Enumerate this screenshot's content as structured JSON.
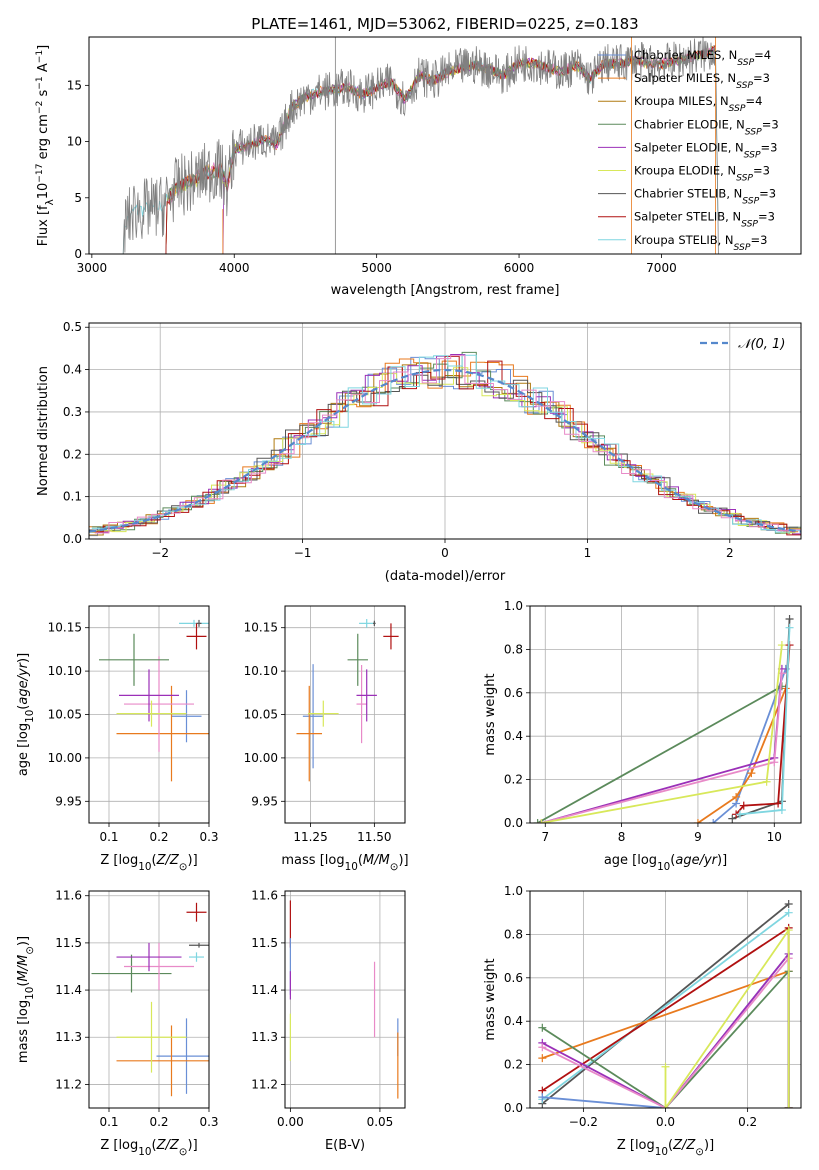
{
  "title": "PLATE=1461, MJD=53062, FIBERID=0225, z=0.183",
  "colors": [
    "#6a8fd6",
    "#e87a1e",
    "#b07a10",
    "#5b8a5b",
    "#9b30b8",
    "#d8e85a",
    "#555555",
    "#b01010",
    "#7fd6e0",
    "#e88ac8"
  ],
  "chart_data": [
    {
      "id": "spectrum",
      "type": "line",
      "xlabel": "wavelength [Angstrom, rest frame]",
      "ylabel": "Flux [f_λ 10^-17 erg cm^-2 s^-1 A^-1]",
      "xlim": [
        2980,
        7980
      ],
      "ylim": [
        0,
        19.3
      ],
      "xticks": [
        3000,
        4000,
        5000,
        6000,
        7000
      ],
      "yticks": [
        0,
        5,
        10,
        15
      ],
      "legend_position": "right",
      "legend": [
        {
          "label": "Chabrier MILES, N_SSP=4",
          "color": "#6a8fd6"
        },
        {
          "label": "Salpeter MILES, N_SSP=3",
          "color": "#e87a1e"
        },
        {
          "label": "Kroupa MILES, N_SSP=4",
          "color": "#b07a10"
        },
        {
          "label": "Chabrier ELODIE, N_SSP=3",
          "color": "#5b8a5b"
        },
        {
          "label": "Salpeter ELODIE, N_SSP=3",
          "color": "#9b30b8"
        },
        {
          "label": "Kroupa ELODIE, N_SSP=3",
          "color": "#d8e85a"
        },
        {
          "label": "Chabrier STELIB, N_SSP=3",
          "color": "#555555"
        },
        {
          "label": "Salpeter STELIB, N_SSP=3",
          "color": "#b01010"
        },
        {
          "label": "Kroupa STELIB, N_SSP=3",
          "color": "#7fd6e0"
        }
      ],
      "envelope": [
        [
          3220,
          0
        ],
        [
          3230,
          2.6
        ],
        [
          3300,
          3.9
        ],
        [
          3400,
          4.0
        ],
        [
          3500,
          4.3
        ],
        [
          3600,
          6.0
        ],
        [
          3700,
          6.4
        ],
        [
          3800,
          7.2
        ],
        [
          3900,
          7.5
        ],
        [
          3950,
          6.0
        ],
        [
          4000,
          9.3
        ],
        [
          4100,
          9.7
        ],
        [
          4200,
          10.2
        ],
        [
          4300,
          9.7
        ],
        [
          4400,
          13.0
        ],
        [
          4500,
          14.0
        ],
        [
          4600,
          14.4
        ],
        [
          4700,
          14.6
        ],
        [
          4800,
          14.8
        ],
        [
          4900,
          14.2
        ],
        [
          5000,
          14.8
        ],
        [
          5100,
          15.3
        ],
        [
          5200,
          13.7
        ],
        [
          5300,
          15.9
        ],
        [
          5400,
          15.4
        ],
        [
          5500,
          16.2
        ],
        [
          5600,
          16.6
        ],
        [
          5700,
          16.8
        ],
        [
          5800,
          16.4
        ],
        [
          5900,
          15.9
        ],
        [
          6000,
          17.0
        ],
        [
          6100,
          17.0
        ],
        [
          6200,
          16.6
        ],
        [
          6300,
          16.2
        ],
        [
          6400,
          16.8
        ],
        [
          6500,
          15.6
        ],
        [
          6600,
          17.0
        ],
        [
          6700,
          16.9
        ],
        [
          6800,
          17.2
        ],
        [
          6900,
          17.0
        ],
        [
          7000,
          16.9
        ],
        [
          7100,
          17.2
        ],
        [
          7200,
          17.5
        ],
        [
          7300,
          17.8
        ],
        [
          7380,
          18.2
        ],
        [
          7400,
          0
        ]
      ]
    },
    {
      "id": "residuals",
      "type": "area",
      "xlabel": "(data-model)/error",
      "ylabel": "Normed distribution",
      "xlim": [
        -2.5,
        2.5
      ],
      "ylim": [
        0,
        0.51
      ],
      "xticks": [
        -2,
        -1,
        0,
        1,
        2
      ],
      "yticks": [
        0.0,
        0.1,
        0.2,
        0.3,
        0.4,
        0.5
      ],
      "grid": true,
      "legend_position": "top-right",
      "reference_label": "𝒩(0, 1)",
      "reference_color": "#5588cc",
      "bin_width": 0.1
    },
    {
      "id": "age_vs_Z",
      "type": "scatter",
      "xlabel": "Z [log10(Z/Z⊙)]",
      "ylabel": "age [log10(age/yr)]",
      "xlim": [
        0.06,
        0.3
      ],
      "ylim": [
        9.925,
        10.175
      ],
      "xticks": [
        0.1,
        0.2,
        0.3
      ],
      "yticks": [
        9.95,
        10.0,
        10.05,
        10.1,
        10.15
      ],
      "grid": true,
      "series": [
        {
          "color": "#6a8fd6",
          "x": 0.255,
          "xerr": 0.03,
          "y": 10.048,
          "yerr": 0.03
        },
        {
          "color": "#e87a1e",
          "x": 0.225,
          "xerr": 0.11,
          "y": 10.028,
          "yerr": 0.055
        },
        {
          "color": "#e88ac8",
          "x": 0.2,
          "xerr": 0.07,
          "y": 10.062,
          "yerr": 0.055
        },
        {
          "color": "#9b30b8",
          "x": 0.18,
          "xerr": 0.06,
          "y": 10.072,
          "yerr": 0.03
        },
        {
          "color": "#d8e85a",
          "x": 0.185,
          "xerr": 0.07,
          "y": 10.051,
          "yerr": 0.015
        },
        {
          "color": "#5b8a5b",
          "x": 0.15,
          "xerr": 0.07,
          "y": 10.113,
          "yerr": 0.03
        },
        {
          "color": "#7fd6e0",
          "x": 0.27,
          "xerr": 0.03,
          "y": 10.155,
          "yerr": 0.004
        },
        {
          "color": "#555555",
          "x": 0.28,
          "xerr": 0.005,
          "y": 10.155,
          "yerr": 0.004
        },
        {
          "color": "#b01010",
          "x": 0.275,
          "xerr": 0.02,
          "y": 10.14,
          "yerr": 0.015
        }
      ]
    },
    {
      "id": "age_vs_mass",
      "type": "scatter",
      "xlabel": "mass [log10(M/M⊙)]",
      "ylabel": "",
      "xlim": [
        11.15,
        11.62
      ],
      "ylim": [
        9.925,
        10.175
      ],
      "xticks": [
        11.25,
        11.5
      ],
      "yticks": [
        9.95,
        10.0,
        10.05,
        10.1,
        10.15
      ],
      "grid": true,
      "series": [
        {
          "color": "#6a8fd6",
          "x": 11.26,
          "xerr": 0.04,
          "y": 10.048,
          "yerr": 0.06
        },
        {
          "color": "#e87a1e",
          "x": 11.245,
          "xerr": 0.05,
          "y": 10.028,
          "yerr": 0.055
        },
        {
          "color": "#d8e85a",
          "x": 11.3,
          "xerr": 0.06,
          "y": 10.051,
          "yerr": 0.015
        },
        {
          "color": "#e88ac8",
          "x": 11.45,
          "xerr": 0.02,
          "y": 10.062,
          "yerr": 0.045
        },
        {
          "color": "#9b30b8",
          "x": 11.47,
          "xerr": 0.04,
          "y": 10.072,
          "yerr": 0.03
        },
        {
          "color": "#5b8a5b",
          "x": 11.435,
          "xerr": 0.04,
          "y": 10.113,
          "yerr": 0.03
        },
        {
          "color": "#7fd6e0",
          "x": 11.47,
          "xerr": 0.03,
          "y": 10.155,
          "yerr": 0.005
        },
        {
          "color": "#555555",
          "x": 11.5,
          "xerr": 0.005,
          "y": 10.155,
          "yerr": 0.003
        },
        {
          "color": "#b01010",
          "x": 11.565,
          "xerr": 0.03,
          "y": 10.14,
          "yerr": 0.015
        }
      ]
    },
    {
      "id": "weight_vs_age",
      "type": "line",
      "xlabel": "age [log10(age/yr)]",
      "ylabel": "mass weight",
      "xlim": [
        6.8,
        10.35
      ],
      "ylim": [
        0,
        1.0
      ],
      "xticks": [
        7,
        8,
        9,
        10
      ],
      "yticks": [
        0.0,
        0.2,
        0.4,
        0.6,
        0.8,
        1.0
      ],
      "grid": true,
      "series": [
        {
          "color": "#6a8fd6",
          "points": [
            [
              9.2,
              0.0
            ],
            [
              9.5,
              0.09
            ],
            [
              10.15,
              0.71
            ]
          ]
        },
        {
          "color": "#e87a1e",
          "points": [
            [
              9.0,
              0.0
            ],
            [
              9.5,
              0.12
            ],
            [
              9.7,
              0.23
            ],
            [
              10.15,
              0.62
            ]
          ]
        },
        {
          "color": "#5b8a5b",
          "points": [
            [
              6.9,
              0.0
            ],
            [
              10.1,
              0.63
            ]
          ]
        },
        {
          "color": "#9b30b8",
          "points": [
            [
              6.95,
              0.0
            ],
            [
              10.0,
              0.3
            ],
            [
              10.1,
              0.71
            ]
          ]
        },
        {
          "color": "#e88ac8",
          "points": [
            [
              6.95,
              0.0
            ],
            [
              10.0,
              0.28
            ],
            [
              10.1,
              0.69
            ]
          ]
        },
        {
          "color": "#d8e85a",
          "points": [
            [
              6.95,
              0.0
            ],
            [
              9.9,
              0.19
            ],
            [
              10.1,
              0.82
            ]
          ]
        },
        {
          "color": "#555555",
          "points": [
            [
              9.45,
              0.02
            ],
            [
              10.1,
              0.1
            ],
            [
              10.2,
              0.94
            ]
          ]
        },
        {
          "color": "#b01010",
          "points": [
            [
              9.5,
              0.04
            ],
            [
              9.6,
              0.08
            ],
            [
              10.05,
              0.09
            ],
            [
              10.2,
              0.82
            ]
          ]
        },
        {
          "color": "#7fd6e0",
          "points": [
            [
              9.55,
              0.04
            ],
            [
              10.1,
              0.06
            ],
            [
              10.2,
              0.9
            ]
          ]
        }
      ]
    },
    {
      "id": "mass_vs_Z",
      "type": "scatter",
      "xlabel": "Z [log10(Z/Z⊙)]",
      "ylabel": "mass [log10(M/M⊙)]",
      "xlim": [
        0.06,
        0.3
      ],
      "ylim": [
        11.15,
        11.61
      ],
      "xticks": [
        0.1,
        0.2,
        0.3
      ],
      "yticks": [
        11.2,
        11.3,
        11.4,
        11.5,
        11.6
      ],
      "grid": true,
      "series": [
        {
          "color": "#6a8fd6",
          "x": 0.255,
          "xerr": 0.06,
          "y": 11.26,
          "yerr": 0.08
        },
        {
          "color": "#e87a1e",
          "x": 0.225,
          "xerr": 0.11,
          "y": 11.25,
          "yerr": 0.075
        },
        {
          "color": "#d8e85a",
          "x": 0.185,
          "xerr": 0.07,
          "y": 11.3,
          "yerr": 0.075
        },
        {
          "color": "#5b8a5b",
          "x": 0.145,
          "xerr": 0.08,
          "y": 11.435,
          "yerr": 0.04
        },
        {
          "color": "#e88ac8",
          "x": 0.2,
          "xerr": 0.07,
          "y": 11.45,
          "yerr": 0.05
        },
        {
          "color": "#9b30b8",
          "x": 0.18,
          "xerr": 0.065,
          "y": 11.47,
          "yerr": 0.03
        },
        {
          "color": "#7fd6e0",
          "x": 0.275,
          "xerr": 0.015,
          "y": 11.47,
          "yerr": 0.01
        },
        {
          "color": "#555555",
          "x": 0.28,
          "xerr": 0.02,
          "y": 11.495,
          "yerr": 0.005
        },
        {
          "color": "#b01010",
          "x": 0.275,
          "xerr": 0.02,
          "y": 11.565,
          "yerr": 0.02
        }
      ]
    },
    {
      "id": "mass_vs_ebv",
      "type": "scatter",
      "xlabel": "E(B-V)",
      "ylabel": "",
      "xlim": [
        -0.003,
        0.064
      ],
      "ylim": [
        11.15,
        11.61
      ],
      "xticks": [
        0.0,
        0.05
      ],
      "yticks": [
        11.2,
        11.3,
        11.4,
        11.5,
        11.6
      ],
      "grid": true,
      "series": [
        {
          "color": "#b01010",
          "x": 0.0,
          "xerr": 0,
          "y": 11.54,
          "yerr": 0.05
        },
        {
          "color": "#6a8fd6",
          "x": 0.0,
          "xerr": 0,
          "y": 11.45,
          "yerr": 0.06
        },
        {
          "color": "#9b30b8",
          "x": 0.0,
          "xerr": 0,
          "y": 11.41,
          "yerr": 0.03
        },
        {
          "color": "#d8e85a",
          "x": 0.0,
          "xerr": 0,
          "y": 11.3,
          "yerr": 0.05
        },
        {
          "color": "#e88ac8",
          "x": 0.047,
          "xerr": 0,
          "y": 11.38,
          "yerr": 0.08
        },
        {
          "color": "#6a8fd6",
          "x": 0.06,
          "xerr": 0,
          "y": 11.3,
          "yerr": 0.04
        },
        {
          "color": "#e87a1e",
          "x": 0.06,
          "xerr": 0,
          "y": 11.24,
          "yerr": 0.07
        }
      ]
    },
    {
      "id": "weight_vs_Z",
      "type": "line",
      "xlabel": "Z [log10(Z/Z⊙)]",
      "ylabel": "mass weight",
      "xlim": [
        -0.33,
        0.33
      ],
      "ylim": [
        0,
        1.0
      ],
      "xticks": [
        -0.2,
        0.0,
        0.2
      ],
      "yticks": [
        0.0,
        0.2,
        0.4,
        0.6,
        0.8,
        1.0
      ],
      "grid": true,
      "series": [
        {
          "color": "#555555",
          "points": [
            [
              -0.3,
              0.02
            ],
            [
              0.3,
              0.94
            ]
          ]
        },
        {
          "color": "#7fd6e0",
          "points": [
            [
              -0.3,
              0.04
            ],
            [
              0.3,
              0.9
            ]
          ]
        },
        {
          "color": "#b01010",
          "points": [
            [
              -0.3,
              0.08
            ],
            [
              0.3,
              0.83
            ],
            [
              0.3,
              0.0
            ]
          ]
        },
        {
          "color": "#e87a1e",
          "points": [
            [
              -0.3,
              0.23
            ],
            [
              0.3,
              0.63
            ],
            [
              0.3,
              0.0
            ]
          ]
        },
        {
          "color": "#5b8a5b",
          "points": [
            [
              -0.3,
              0.37
            ],
            [
              0.0,
              0.0
            ],
            [
              0.3,
              0.63
            ],
            [
              0.3,
              0.0
            ]
          ]
        },
        {
          "color": "#6a8fd6",
          "points": [
            [
              -0.3,
              0.05
            ],
            [
              0.0,
              0.0
            ],
            [
              0.3,
              0.71
            ],
            [
              0.3,
              0.0
            ]
          ]
        },
        {
          "color": "#9b30b8",
          "points": [
            [
              -0.3,
              0.3
            ],
            [
              0.0,
              0.0
            ],
            [
              0.3,
              0.71
            ],
            [
              0.3,
              0.0
            ]
          ]
        },
        {
          "color": "#e88ac8",
          "points": [
            [
              -0.3,
              0.28
            ],
            [
              0.0,
              0.0
            ],
            [
              0.3,
              0.69
            ]
          ]
        },
        {
          "color": "#d8e85a",
          "points": [
            [
              0.0,
              0.19
            ],
            [
              0.0,
              0.0
            ],
            [
              0.3,
              0.82
            ],
            [
              0.3,
              0.0
            ]
          ]
        }
      ]
    }
  ]
}
